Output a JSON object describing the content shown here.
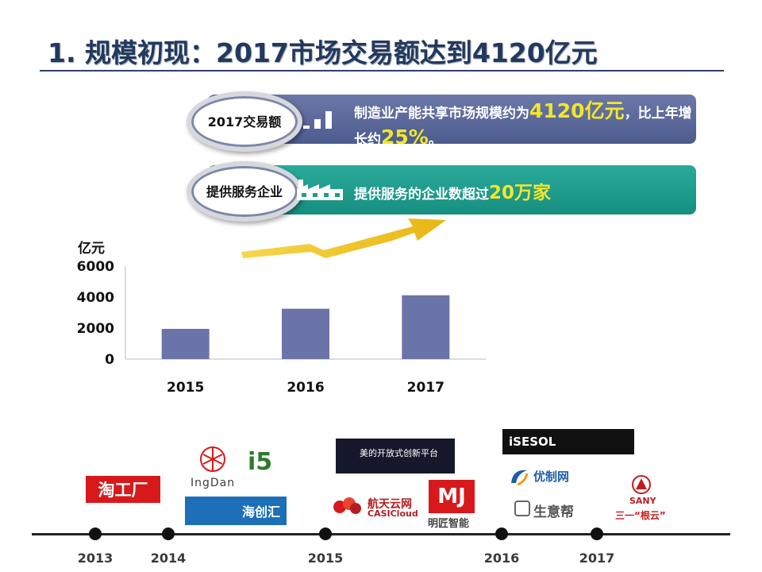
{
  "title": "1. 规模初现：2017市场交易额达到4120亿元",
  "banner1": {
    "label": "2017交易额",
    "text_pre": "制造业产能共享市场规模约为",
    "highlight_value": "4120亿元",
    "text_mid": "，比上年增长约",
    "highlight_pct": "25%",
    "text_post": "。",
    "icon": "bar-chart-icon"
  },
  "banner2": {
    "label": "提供服务企业",
    "text_pre": "提供服务的企业数超过",
    "highlight_value": "20万家",
    "icon": "factory-icon"
  },
  "chart_data": {
    "type": "bar",
    "categories": [
      "2015",
      "2016",
      "2017"
    ],
    "values": [
      1950,
      3250,
      4120
    ],
    "ylabel": "亿元",
    "ylim": [
      0,
      6000
    ],
    "yticks": [
      "0",
      "2000",
      "4000",
      "6000"
    ],
    "grid": false,
    "bar_color": "#6b74a8"
  },
  "timeline": {
    "years": [
      "2013",
      "2014",
      "2015",
      "2016",
      "2017"
    ]
  },
  "logos": {
    "taogongchang": "淘工厂",
    "ingdan": "IngDan",
    "i5": "i5",
    "haichuanghui": "海创汇",
    "midea": "美的开放式创新平台",
    "casicloud_cn": "航天云网",
    "casicloud_en": "CASICloud",
    "mj": "MJ",
    "mj_label": "明匠智能",
    "isesol": "iSESOL",
    "youzhi": "优制网",
    "shengyibang": "生意帮",
    "sany": "SANY",
    "sany_gengyun": "三一“根云”"
  },
  "colors": {
    "title": "#22395e",
    "banner1": "#5a679a",
    "banner2": "#1f9d8d",
    "highlight": "#f2e62a",
    "arrow": "#f0c419"
  }
}
